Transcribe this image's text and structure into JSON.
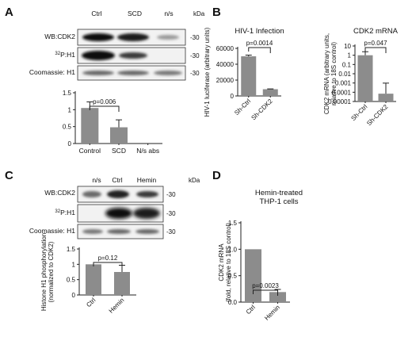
{
  "panels": {
    "A": {
      "letter": "A",
      "blot": {
        "lanes": [
          "Ctrl",
          "SCD",
          "n/s"
        ],
        "kda_header": "kDa",
        "rows": [
          {
            "label": "WB:CDK2",
            "kda": "-30"
          },
          {
            "label_sup": "32",
            "label_rest": "P:H1",
            "kda": "-30"
          },
          {
            "label": "Coomassie: H1",
            "kda": "-30"
          }
        ]
      }
    },
    "B": {
      "letter": "B"
    },
    "C": {
      "letter": "C",
      "blot": {
        "lanes": [
          "n/s",
          "Ctrl",
          "Hemin"
        ],
        "kda_header": "kDa",
        "rows": [
          {
            "label": "WB:CDK2",
            "kda": "-30"
          },
          {
            "label_sup": "32",
            "label_rest": "P:H1",
            "kda": "-30"
          },
          {
            "label": "Coomassie: H1",
            "kda": "-30"
          }
        ]
      }
    },
    "D": {
      "letter": "D"
    }
  },
  "chart_data": [
    {
      "id": "A",
      "type": "bar",
      "categories": [
        "Control",
        "SCD",
        "N/s abs"
      ],
      "values": [
        1.05,
        0.48,
        0
      ],
      "errors": [
        0.18,
        0.22,
        0
      ],
      "ylim": [
        0,
        1.5
      ],
      "yticks": [
        "0",
        "0.5",
        "1",
        "1.5"
      ],
      "ytick_values": [
        0,
        0.5,
        1,
        1.5
      ],
      "ylabel": "",
      "title": "",
      "significance": {
        "label": "p=0.006",
        "pair": [
          0,
          1
        ]
      },
      "bar_color": "#8c8c8c"
    },
    {
      "id": "B1",
      "type": "bar",
      "title": "HIV-1 Infection",
      "categories": [
        "Sh-Ctrl",
        "Sh-CDK2"
      ],
      "values": [
        50000,
        8500
      ],
      "errors": [
        1500,
        400
      ],
      "ylim": [
        0,
        60000
      ],
      "yticks": [
        "0",
        "20000",
        "40000",
        "60000"
      ],
      "ytick_values": [
        0,
        20000,
        40000,
        60000
      ],
      "ylabel": "HIV-1 luciferase (arbitrary units)",
      "significance": {
        "label": "p=0.0014",
        "pair": [
          0,
          1
        ]
      },
      "bar_color": "#8c8c8c"
    },
    {
      "id": "B2",
      "type": "bar",
      "title": "CDK2 mRNA",
      "log_scale": true,
      "categories": [
        "Sh-Ctrl",
        "Sh-CDK2"
      ],
      "values": [
        1,
        7e-05
      ],
      "errors_upper": [
        1.4,
        0.0009
      ],
      "ylim": [
        1e-05,
        10
      ],
      "yticks": [
        "10",
        "1",
        "0.1",
        "0.01",
        "0.001",
        "0.0001",
        "0.00001"
      ],
      "ytick_values": [
        10,
        1,
        0.1,
        0.01,
        0.001,
        0.0001,
        1e-05
      ],
      "ylabel": "CDK2 mRNA (arbitrary units, relative to 18S control)",
      "significance": {
        "label": "p=0.047",
        "pair": [
          0,
          1
        ]
      },
      "bar_color": "#8c8c8c"
    },
    {
      "id": "C",
      "type": "bar",
      "categories": [
        "Ctrl",
        "Hemin"
      ],
      "values": [
        1.0,
        0.75
      ],
      "errors": [
        0,
        0.22
      ],
      "ylim": [
        0,
        1.5
      ],
      "yticks": [
        "0",
        "0.5",
        "1",
        "1.5"
      ],
      "ytick_values": [
        0,
        0.5,
        1,
        1.5
      ],
      "ylabel": "Histone H1 phosphorylation (normalized to CDK2)",
      "significance": {
        "label": "p=0.12",
        "pair": [
          0,
          1
        ]
      },
      "bar_color": "#8c8c8c"
    },
    {
      "id": "D",
      "type": "bar",
      "title": "Hemin-treated THP-1 cells",
      "categories": [
        "Ctrl",
        "Hemin"
      ],
      "values": [
        1.0,
        0.19
      ],
      "errors": [
        0,
        0.05
      ],
      "ylim": [
        0,
        1.5
      ],
      "yticks": [
        "0.0",
        "0.5",
        "1.0",
        "1.5"
      ],
      "ytick_values": [
        0,
        0.5,
        1,
        1.5
      ],
      "ylabel": "CDK2 mRNA (fold, relative to 18S control)",
      "significance": {
        "label": "p=0.0023",
        "pair": [
          0,
          1
        ]
      },
      "bar_color": "#8c8c8c"
    }
  ]
}
